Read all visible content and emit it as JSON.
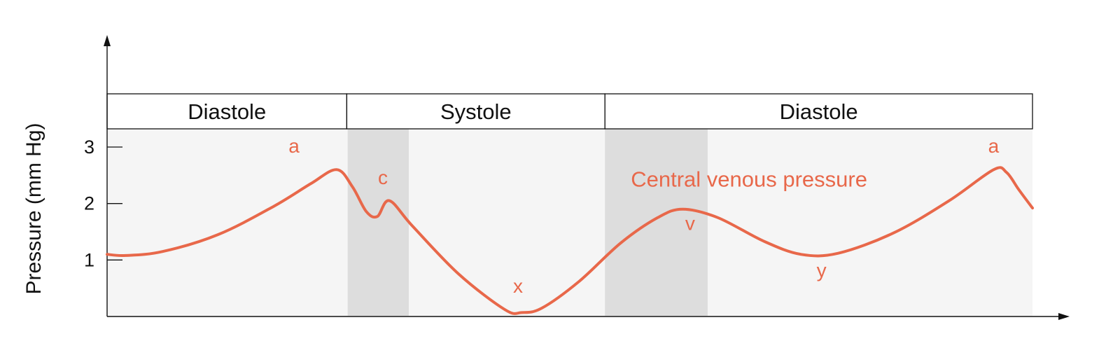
{
  "chart_data": {
    "type": "line",
    "title": "",
    "xlabel": "",
    "ylabel": "Pressure (mm Hg)",
    "ylim": [
      0,
      3
    ],
    "yticks": [
      "1",
      "2",
      "3"
    ],
    "xlim": [
      0,
      1
    ],
    "grid": false,
    "phases": [
      {
        "label": "Diastole",
        "start": 0.0,
        "end": 0.259
      },
      {
        "label": "Systole",
        "start": 0.259,
        "end": 0.538
      },
      {
        "label": "Diastole",
        "start": 0.538,
        "end": 1.0
      }
    ],
    "shaded_bands": [
      {
        "start": 0.26,
        "end": 0.326
      },
      {
        "start": 0.538,
        "end": 0.649
      }
    ],
    "series": [
      {
        "name": "Central venous pressure",
        "color": "#E8684A",
        "x": [
          0.0,
          0.02,
          0.06,
          0.12,
          0.18,
          0.22,
          0.248,
          0.265,
          0.28,
          0.292,
          0.305,
          0.33,
          0.38,
          0.43,
          0.448,
          0.47,
          0.51,
          0.555,
          0.595,
          0.622,
          0.66,
          0.71,
          0.75,
          0.79,
          0.85,
          0.91,
          0.958,
          0.972,
          0.985,
          1.0
        ],
        "y": [
          1.1,
          1.08,
          1.15,
          1.45,
          1.95,
          2.35,
          2.6,
          2.3,
          1.86,
          1.77,
          2.05,
          1.6,
          0.75,
          0.12,
          0.07,
          0.15,
          0.62,
          1.3,
          1.75,
          1.9,
          1.75,
          1.33,
          1.1,
          1.12,
          1.48,
          2.05,
          2.6,
          2.55,
          2.25,
          1.92
        ]
      }
    ],
    "annotations": [
      {
        "text": "a",
        "x": 0.202,
        "y": 2.9
      },
      {
        "text": "c",
        "x": 0.298,
        "y": 2.34
      },
      {
        "text": "x",
        "x": 0.444,
        "y": 0.42
      },
      {
        "text": "v",
        "x": 0.63,
        "y": 1.53
      },
      {
        "text": "y",
        "x": 0.772,
        "y": 0.7
      },
      {
        "text": "a",
        "x": 0.958,
        "y": 2.9
      }
    ],
    "colors": {
      "curve": "#E8684A",
      "plot_background": "#F5F5F5",
      "band": "#DDDDDD",
      "axis": "#111111"
    }
  }
}
